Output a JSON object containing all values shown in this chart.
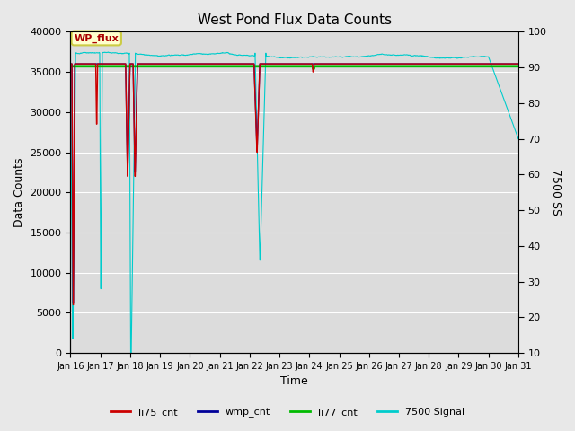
{
  "title": "West Pond Flux Data Counts",
  "xlabel": "Time",
  "ylabel_left": "Data Counts",
  "ylabel_right": "7500 SS",
  "ylim_left": [
    0,
    40000
  ],
  "ylim_right": [
    10,
    100
  ],
  "xlim": [
    0,
    15
  ],
  "xtick_labels": [
    "Jan 16",
    "Jan 17",
    "Jan 18",
    "Jan 19",
    "Jan 20",
    "Jan 21",
    "Jan 22",
    "Jan 23",
    "Jan 24",
    "Jan 25",
    "Jan 26",
    "Jan 27",
    "Jan 28",
    "Jan 29",
    "Jan 30",
    "Jan 31"
  ],
  "fig_bg": "#e8e8e8",
  "plot_bg": "#dcdcdc",
  "legend_box_fill": "#ffffcc",
  "legend_box_edge": "#cccc44",
  "annotation_text": "WP_flux",
  "annotation_color": "#aa0000",
  "li75_color": "#cc0000",
  "wmp_color": "#000099",
  "li77_color": "#00bb00",
  "signal_color": "#00cccc",
  "li77_level": 35700,
  "li75_base": 36000,
  "grid_color": "#ffffff",
  "yticks_left": [
    0,
    5000,
    10000,
    15000,
    20000,
    25000,
    30000,
    35000,
    40000
  ],
  "yticks_right": [
    10,
    20,
    30,
    40,
    50,
    60,
    70,
    80,
    90,
    100
  ]
}
